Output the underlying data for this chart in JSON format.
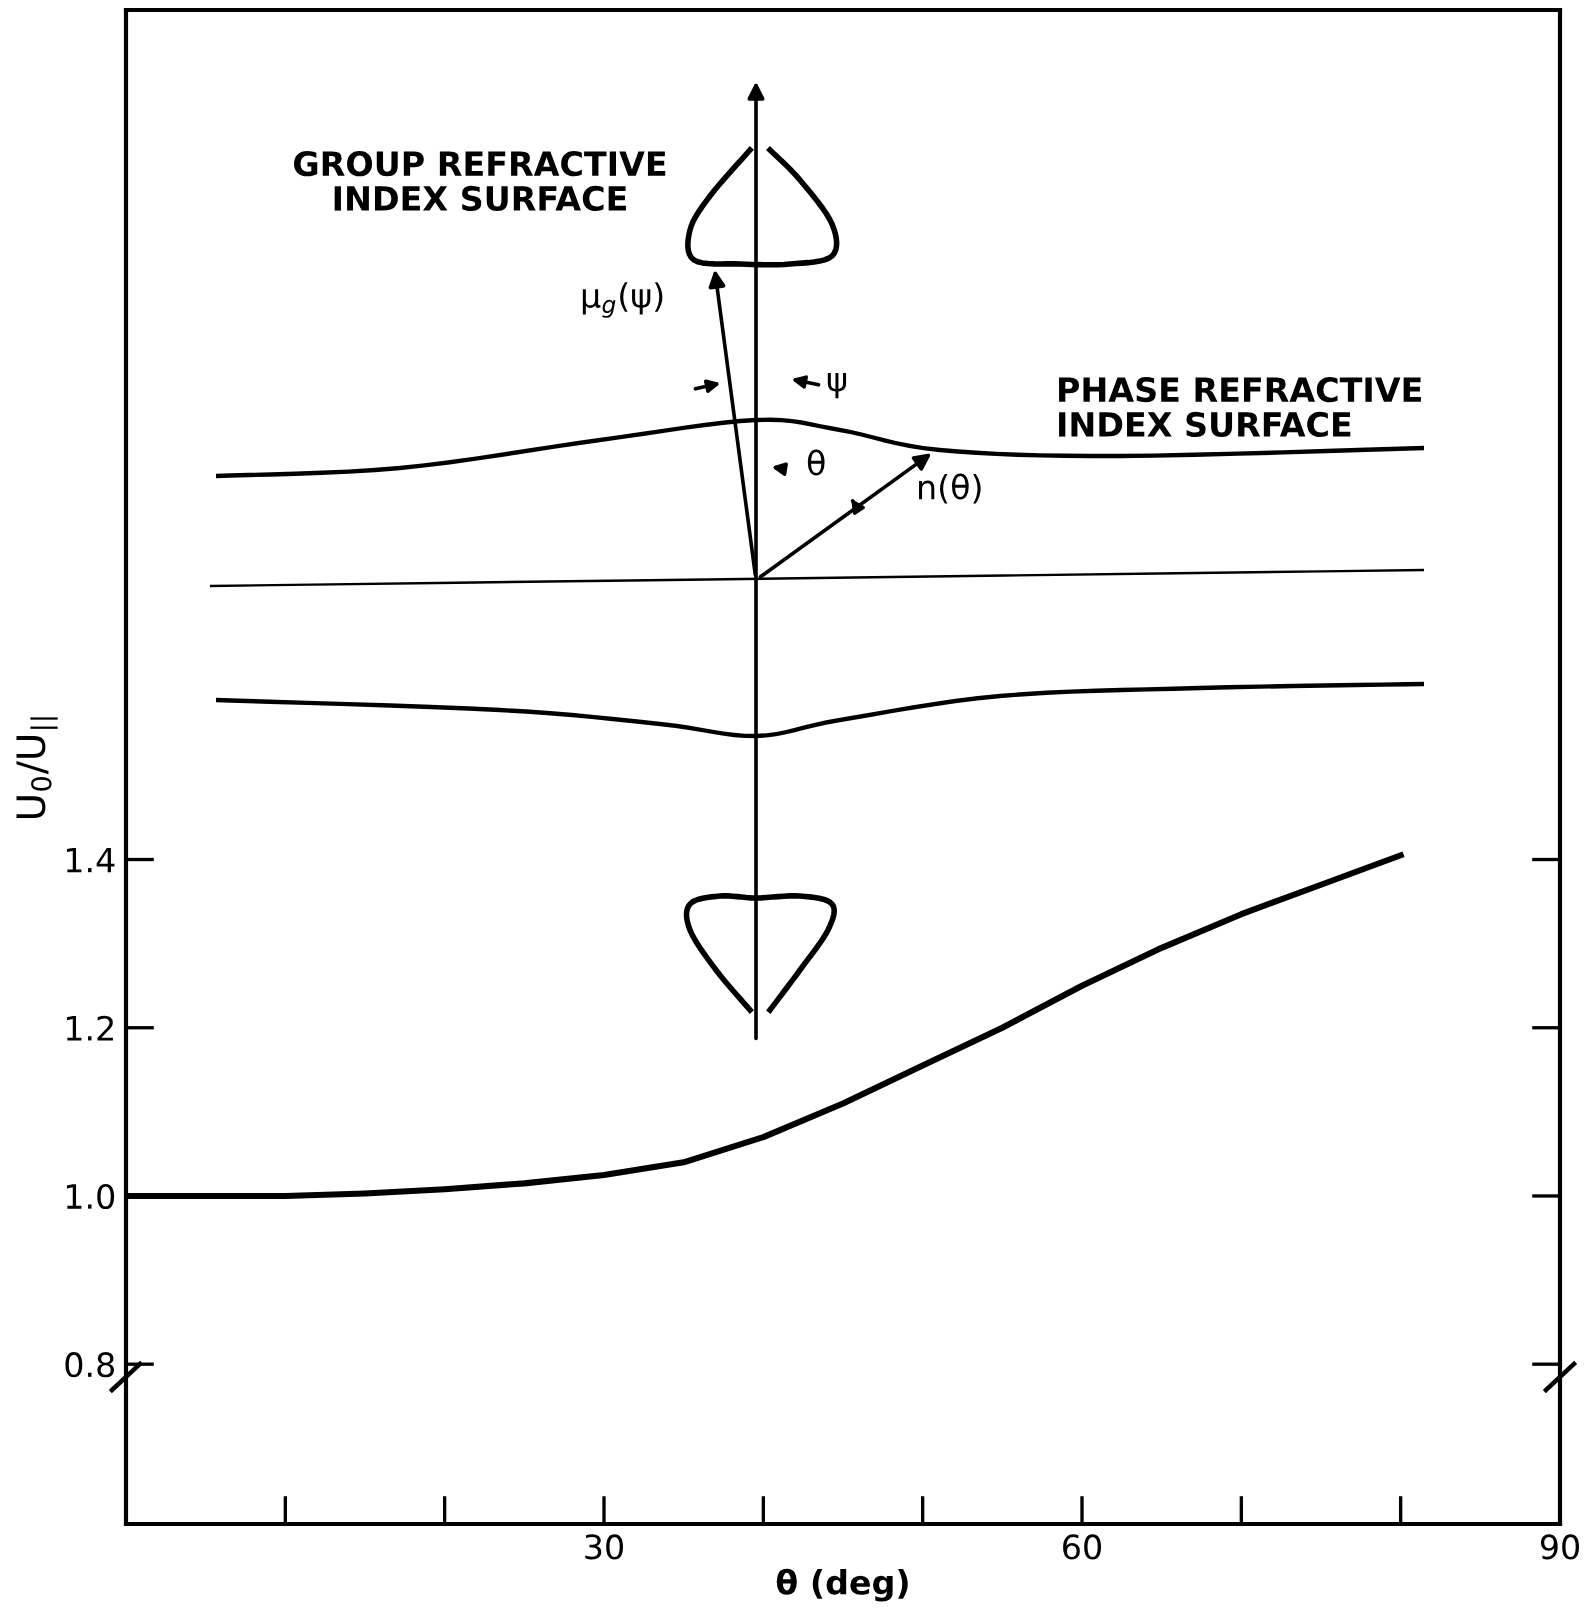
{
  "chart_data": {
    "type": "line",
    "xlabel": "θ (deg)",
    "ylabel": "U$_{0}$/U$_{||}$",
    "x": [
      0,
      5,
      10,
      15,
      20,
      25,
      30,
      35,
      40,
      45,
      50,
      55,
      60,
      65,
      70,
      75,
      80
    ],
    "series": [
      {
        "color": "#000000",
        "values": [
          1.0,
          1.0,
          1.0,
          1.003,
          1.008,
          1.015,
          1.025,
          1.04,
          1.07,
          1.11,
          1.155,
          1.2,
          1.25,
          1.295,
          1.335,
          1.37,
          1.405
        ]
      }
    ],
    "xlim": [
      0,
      90
    ],
    "ylim": [
      0.61,
      2.41
    ],
    "xticks": [
      {
        "value": 10,
        "label": null
      },
      {
        "value": 20,
        "label": null
      },
      30,
      {
        "value": 40,
        "label": null
      },
      {
        "value": 50,
        "label": null
      },
      60,
      {
        "value": 70,
        "label": null
      },
      {
        "value": 80,
        "label": null
      },
      90
    ],
    "yticks": [
      0.8,
      {
        "value": 1.0,
        "label": "1.0"
      },
      1.2,
      1.4
    ],
    "grid": false,
    "legend": false,
    "marker": "none",
    "line_style": "solid",
    "annotations": [
      "GROUP REFRACTIVE\nINDEX SURFACE",
      "PHASE REFRACTIVE\nINDEX SURFACE",
      "μ$_{g}$(ψ)",
      "ψ",
      "θ",
      "n(θ)"
    ]
  }
}
